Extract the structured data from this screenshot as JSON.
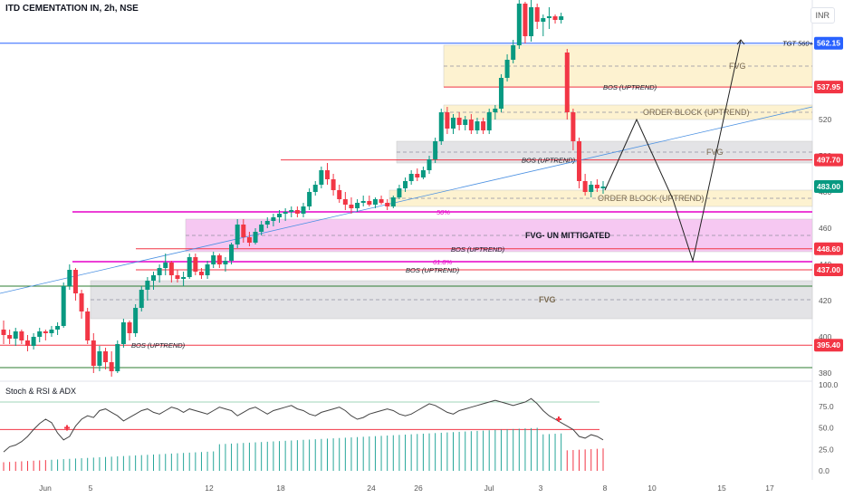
{
  "header": {
    "symbol": "ITD CEMENTATION IN, 2h, NSE",
    "currency": "INR"
  },
  "indicator": {
    "name": "Stoch & RSI & ADX"
  },
  "chart_data": {
    "type": "candlestick",
    "price_axis": {
      "ticks": [
        380,
        400,
        420,
        440,
        460,
        480,
        500,
        520
      ],
      "ylim": [
        377,
        586
      ]
    },
    "osc_axis": {
      "ticks": [
        "100.0",
        "75.0",
        "50.0",
        "25.0",
        "0.0"
      ],
      "values": [
        100,
        75,
        50,
        25,
        0
      ]
    },
    "x_ticks": [
      "Jun",
      "5",
      "12",
      "18",
      "24",
      "26",
      "Jul",
      "3",
      "8",
      "10",
      "15",
      "17"
    ],
    "price_badges": [
      {
        "label": "562.15",
        "value": 562.15,
        "color": "#2962ff"
      },
      {
        "label": "537.95",
        "value": 537.95,
        "color": "#f23645"
      },
      {
        "label": "497.70",
        "value": 497.7,
        "color": "#f23645"
      },
      {
        "label": "483.00",
        "value": 483.0,
        "color": "#089981"
      },
      {
        "label": "448.60",
        "value": 448.6,
        "color": "#f23645"
      },
      {
        "label": "437.00",
        "value": 437.0,
        "color": "#f23645"
      },
      {
        "label": "395.40",
        "value": 395.4,
        "color": "#f23645"
      }
    ],
    "zones": [
      {
        "label": "FVG",
        "from": 538,
        "to": 561,
        "color": "#fdf2d0"
      },
      {
        "label": "ORDER BLOCK (UPTREND)",
        "from": 520,
        "to": 528,
        "color": "#fdf2d0"
      },
      {
        "label": "FVG",
        "from": 496,
        "to": 508,
        "color": "#e3e3e6"
      },
      {
        "label": "ORDER BLOCK (UPTREND)",
        "from": 472,
        "to": 481,
        "color": "#fdf2d0"
      },
      {
        "label": "FVG- UN MITTIGATED",
        "from": 447,
        "to": 465,
        "color": "#f6c8f2"
      },
      {
        "label": "FVG",
        "from": 410,
        "to": 431,
        "color": "#e3e3e6"
      }
    ],
    "lines": [
      {
        "label": "TGT 560+",
        "value": 562.15,
        "color": "#2962ff"
      },
      {
        "label": "BOS (UPTREND)",
        "value": 537.95,
        "color": "#f23645"
      },
      {
        "label": "BOS (UPTREND)",
        "value": 497.7,
        "color": "#f23645"
      },
      {
        "label": "BOS (UPTREND)",
        "value": 448.6,
        "color": "#f23645"
      },
      {
        "label": "BOS (UPTREND)",
        "value": 437.0,
        "color": "#f23645"
      },
      {
        "label": "BOS (UPTREND)",
        "value": 395.4,
        "color": "#f23645"
      },
      {
        "label": "50%",
        "value": 469,
        "color": "#e600c8"
      },
      {
        "label": "61.8%",
        "value": 441.5,
        "color": "#e600c8"
      },
      {
        "label": "",
        "value": 428,
        "color": "#2e7d32"
      },
      {
        "label": "",
        "value": 383,
        "color": "#2e7d32"
      }
    ],
    "candles": [
      [
        404,
        409,
        396,
        401
      ],
      [
        401,
        404,
        396,
        399
      ],
      [
        399,
        405,
        395,
        403
      ],
      [
        403,
        404,
        396,
        398
      ],
      [
        398,
        401,
        392,
        395
      ],
      [
        395,
        402,
        393,
        400
      ],
      [
        400,
        405,
        397,
        403
      ],
      [
        403,
        404,
        398,
        402
      ],
      [
        402,
        406,
        400,
        404
      ],
      [
        404,
        408,
        401,
        406
      ],
      [
        406,
        430,
        405,
        428
      ],
      [
        428,
        440,
        426,
        437
      ],
      [
        437,
        438,
        420,
        424
      ],
      [
        424,
        426,
        410,
        414
      ],
      [
        414,
        416,
        396,
        398
      ],
      [
        398,
        402,
        380,
        384
      ],
      [
        384,
        395,
        381,
        392
      ],
      [
        392,
        394,
        382,
        386
      ],
      [
        386,
        392,
        378,
        381
      ],
      [
        381,
        398,
        380,
        396
      ],
      [
        396,
        410,
        394,
        408
      ],
      [
        408,
        409,
        398,
        402
      ],
      [
        402,
        418,
        400,
        416
      ],
      [
        416,
        428,
        414,
        426
      ],
      [
        426,
        433,
        420,
        431
      ],
      [
        431,
        436,
        426,
        434
      ],
      [
        434,
        440,
        430,
        438
      ],
      [
        438,
        446,
        434,
        441
      ],
      [
        441,
        442,
        430,
        434
      ],
      [
        434,
        437,
        430,
        432
      ],
      [
        432,
        436,
        428,
        433
      ],
      [
        433,
        446,
        432,
        444
      ],
      [
        444,
        446,
        434,
        436
      ],
      [
        436,
        438,
        432,
        434
      ],
      [
        434,
        442,
        432,
        440
      ],
      [
        440,
        447,
        438,
        445
      ],
      [
        445,
        446,
        438,
        440
      ],
      [
        440,
        444,
        436,
        442
      ],
      [
        442,
        452,
        440,
        451
      ],
      [
        451,
        465,
        449,
        462
      ],
      [
        462,
        465,
        452,
        455
      ],
      [
        455,
        458,
        450,
        452
      ],
      [
        452,
        460,
        451,
        458
      ],
      [
        458,
        464,
        456,
        462
      ],
      [
        462,
        466,
        460,
        464
      ],
      [
        464,
        468,
        461,
        466
      ],
      [
        466,
        470,
        463,
        468
      ],
      [
        468,
        471,
        464,
        469
      ],
      [
        469,
        472,
        466,
        470
      ],
      [
        470,
        472,
        466,
        468
      ],
      [
        468,
        474,
        466,
        472
      ],
      [
        472,
        482,
        470,
        480
      ],
      [
        480,
        486,
        478,
        484
      ],
      [
        484,
        494,
        482,
        492
      ],
      [
        492,
        496,
        484,
        487
      ],
      [
        487,
        490,
        478,
        481
      ],
      [
        481,
        484,
        474,
        476
      ],
      [
        476,
        480,
        470,
        473
      ],
      [
        473,
        477,
        468,
        471
      ],
      [
        471,
        476,
        469,
        474
      ],
      [
        474,
        478,
        472,
        475
      ],
      [
        475,
        478,
        472,
        473
      ],
      [
        473,
        477,
        471,
        476
      ],
      [
        476,
        478,
        473,
        474
      ],
      [
        474,
        476,
        470,
        472
      ],
      [
        472,
        478,
        471,
        477
      ],
      [
        477,
        484,
        476,
        482
      ],
      [
        482,
        488,
        480,
        486
      ],
      [
        486,
        492,
        484,
        490
      ],
      [
        490,
        493,
        486,
        488
      ],
      [
        488,
        494,
        487,
        492
      ],
      [
        492,
        500,
        490,
        498
      ],
      [
        498,
        510,
        496,
        508
      ],
      [
        508,
        526,
        506,
        524
      ],
      [
        524,
        527,
        512,
        515
      ],
      [
        515,
        523,
        512,
        521
      ],
      [
        521,
        524,
        514,
        517
      ],
      [
        517,
        522,
        514,
        520
      ],
      [
        520,
        523,
        512,
        514
      ],
      [
        514,
        521,
        512,
        519
      ],
      [
        519,
        521,
        512,
        514
      ],
      [
        514,
        526,
        512,
        524
      ],
      [
        524,
        528,
        520,
        526
      ],
      [
        526,
        545,
        524,
        543
      ],
      [
        543,
        556,
        541,
        553
      ],
      [
        553,
        564,
        551,
        561
      ],
      [
        561,
        586,
        559,
        584
      ],
      [
        584,
        585,
        562,
        566
      ],
      [
        566,
        586,
        563,
        582
      ],
      [
        582,
        584,
        570,
        574
      ],
      [
        574,
        578,
        566,
        576
      ],
      [
        576,
        582,
        570,
        577
      ],
      [
        577,
        578,
        573,
        575
      ],
      [
        575,
        579,
        573,
        577
      ],
      [
        557,
        559,
        520,
        524
      ],
      [
        524,
        526,
        503,
        508
      ],
      [
        508,
        510,
        482,
        486
      ],
      [
        486,
        490,
        478,
        480
      ],
      [
        480,
        486,
        477,
        484
      ],
      [
        484,
        487,
        480,
        482
      ],
      [
        482,
        486,
        479,
        483
      ]
    ],
    "oscillator": [
      22,
      28,
      30,
      34,
      40,
      48,
      55,
      60,
      56,
      44,
      36,
      40,
      52,
      60,
      64,
      62,
      70,
      72,
      68,
      64,
      58,
      62,
      66,
      70,
      72,
      68,
      66,
      70,
      74,
      72,
      68,
      72,
      70,
      68,
      66,
      70,
      74,
      72,
      70,
      64,
      68,
      72,
      74,
      70,
      66,
      70,
      72,
      74,
      76,
      72,
      70,
      66,
      64,
      68,
      70,
      72,
      74,
      70,
      64,
      60,
      62,
      66,
      68,
      70,
      72,
      70,
      66,
      64,
      66,
      70,
      74,
      78,
      76,
      72,
      68,
      66,
      70,
      72,
      74,
      76,
      78,
      80,
      82,
      80,
      78,
      76,
      78,
      80,
      84,
      78,
      70,
      64,
      60,
      56,
      52,
      48,
      40,
      38,
      42,
      40,
      36
    ]
  }
}
